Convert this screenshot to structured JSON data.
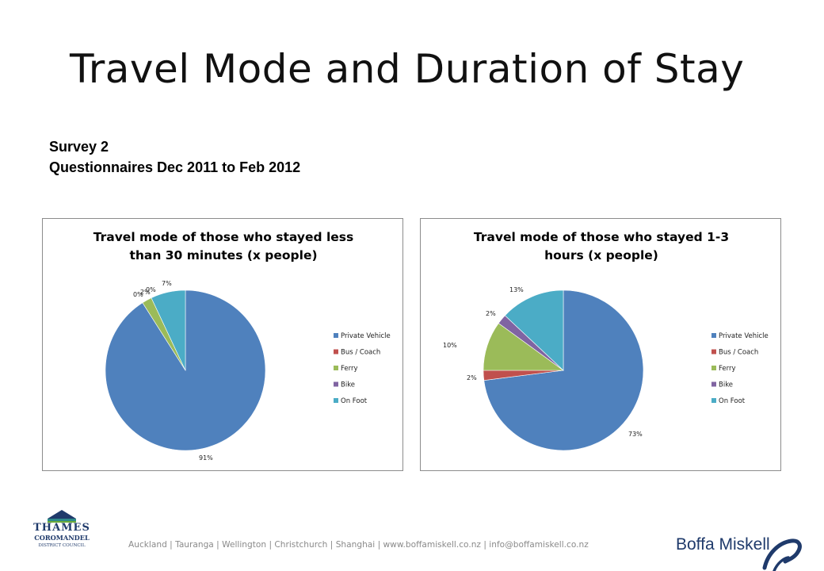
{
  "slide": {
    "title": "Travel Mode and Duration of Stay",
    "subtitle_line1": "Survey 2",
    "subtitle_line2": "Questionnaires Dec 2011 to Feb 2012"
  },
  "chart_data": [
    {
      "type": "pie",
      "title_lines": [
        "Travel mode of those who stayed less",
        "than 30 minutes (x people)"
      ],
      "categories": [
        "Private Vehicle",
        "Bus / Coach",
        "Ferry",
        "Bike",
        "On Foot"
      ],
      "values": [
        91,
        0,
        2,
        0,
        7
      ],
      "data_labels": [
        "91%",
        "0%",
        "2%",
        "0%",
        "7%"
      ],
      "colors": [
        "#4f81bd",
        "#c0504d",
        "#9bbb59",
        "#8064a2",
        "#4bacc6"
      ],
      "legend_position": "right"
    },
    {
      "type": "pie",
      "title_lines": [
        "Travel mode of those who stayed 1-3",
        "hours (x people)"
      ],
      "categories": [
        "Private Vehicle",
        "Bus / Coach",
        "Ferry",
        "Bike",
        "On Foot"
      ],
      "values": [
        73,
        2,
        10,
        2,
        13
      ],
      "data_labels": [
        "73%",
        "2%",
        "10%",
        "2%",
        "13%"
      ],
      "colors": [
        "#4f81bd",
        "#c0504d",
        "#9bbb59",
        "#8064a2",
        "#4bacc6"
      ],
      "legend_position": "right"
    }
  ],
  "footer": {
    "offices": "Auckland  |  Tauranga  |  Wellington  |  Christchurch  |  Shanghai   |  www.boffamiskell.co.nz   |  info@boffamiskell.co.nz",
    "brand": "Boffa Miskell"
  },
  "council_logo": {
    "line1": "THAMES",
    "line2": "COROMANDEL",
    "line3": "DISTRICT COUNCIL",
    "colors": [
      "#1f3a6b",
      "#2e8a8a",
      "#6aaa3a"
    ]
  }
}
